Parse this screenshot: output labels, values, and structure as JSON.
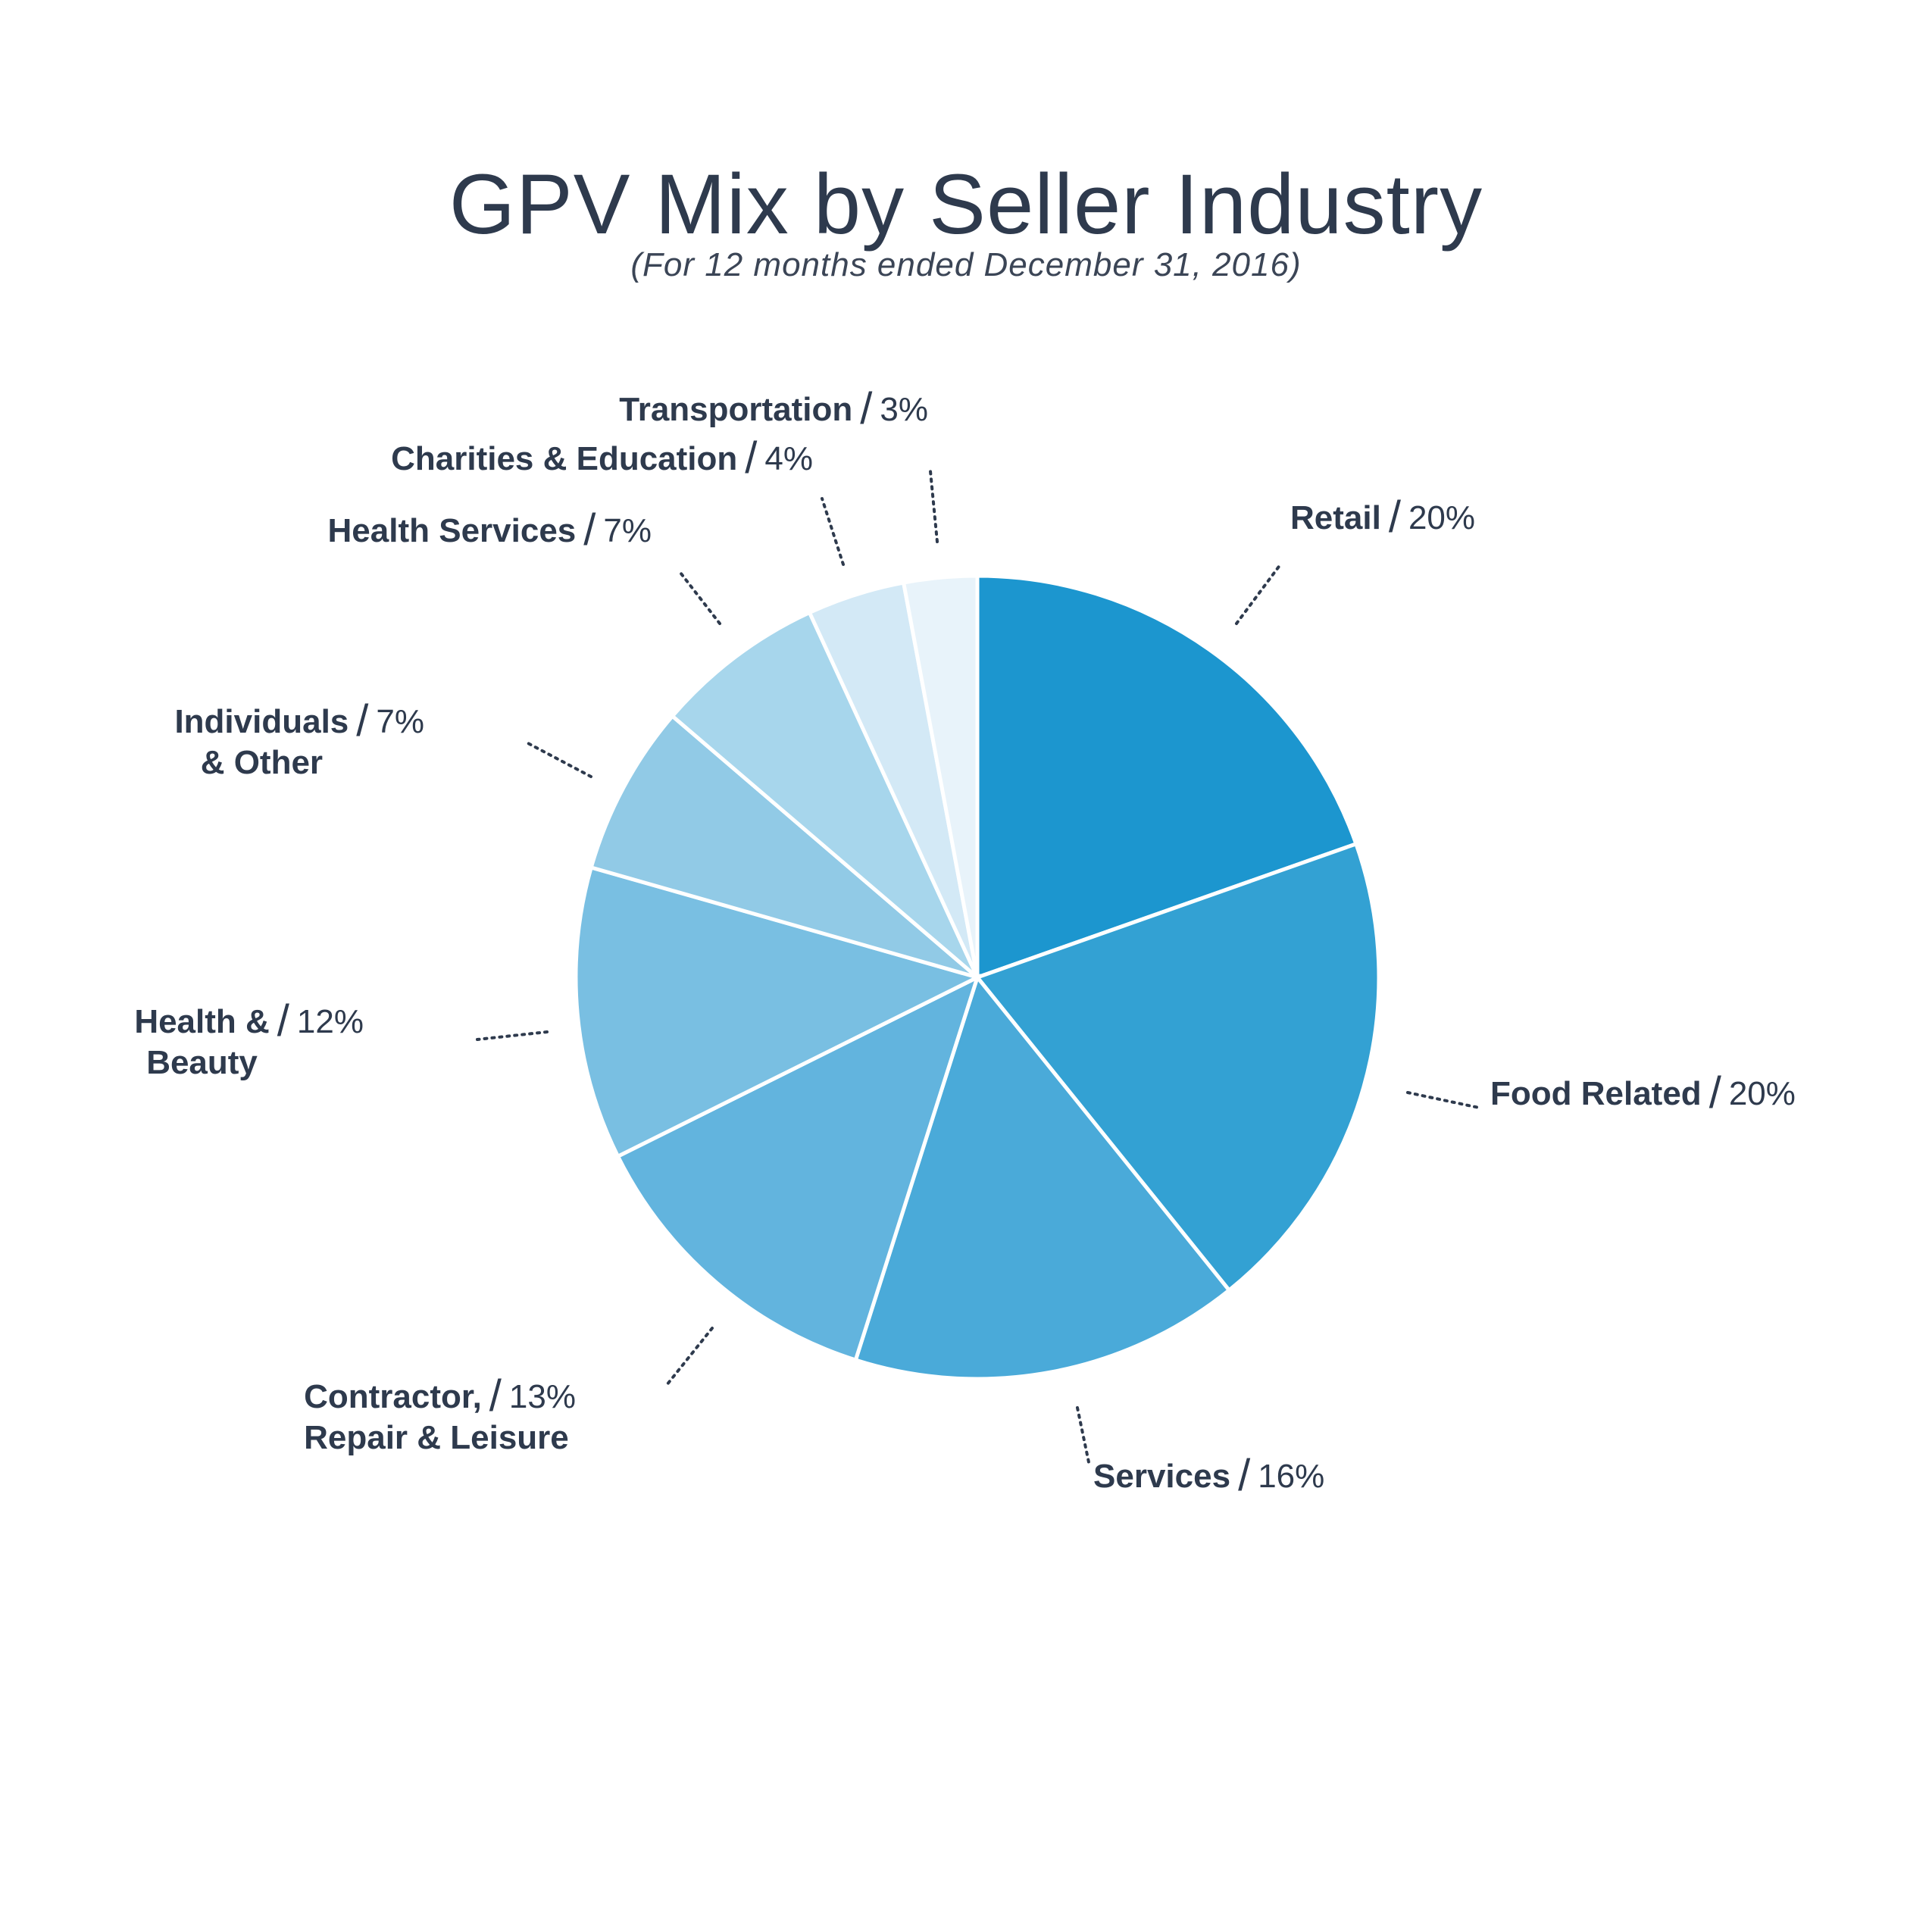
{
  "chart_data": {
    "type": "pie",
    "title": "GPV Mix by Seller Industry",
    "subtitle": "(For 12 months ended December 31, 2016)",
    "slices": [
      {
        "label": "Retail",
        "label_line2": "",
        "value": 20,
        "value_label": "20%",
        "color": "#1c96cf"
      },
      {
        "label": "Food Related",
        "label_line2": "",
        "value": 20,
        "value_label": "20%",
        "color": "#33a1d3"
      },
      {
        "label": "Services",
        "label_line2": "",
        "value": 16,
        "value_label": "16%",
        "color": "#4aaad9"
      },
      {
        "label": "Contractor,",
        "label_line2": "Repair & Leisure",
        "value": 13,
        "value_label": "13%",
        "color": "#62b4de"
      },
      {
        "label": "Health &",
        "label_line2": "Beauty",
        "value": 12,
        "value_label": "12%",
        "color": "#79bfe2"
      },
      {
        "label": "Individuals",
        "label_line2": "& Other",
        "value": 7,
        "value_label": "7%",
        "color": "#91cae6"
      },
      {
        "label": "Health Services",
        "label_line2": "",
        "value": 7,
        "value_label": "7%",
        "color": "#a7d6ec"
      },
      {
        "label": "Charities & Education",
        "label_line2": "",
        "value": 4,
        "value_label": "4%",
        "color": "#d3e9f6"
      },
      {
        "label": "Transportation",
        "label_line2": "",
        "value": 3,
        "value_label": "3%",
        "color": "#e8f3fa"
      }
    ]
  }
}
